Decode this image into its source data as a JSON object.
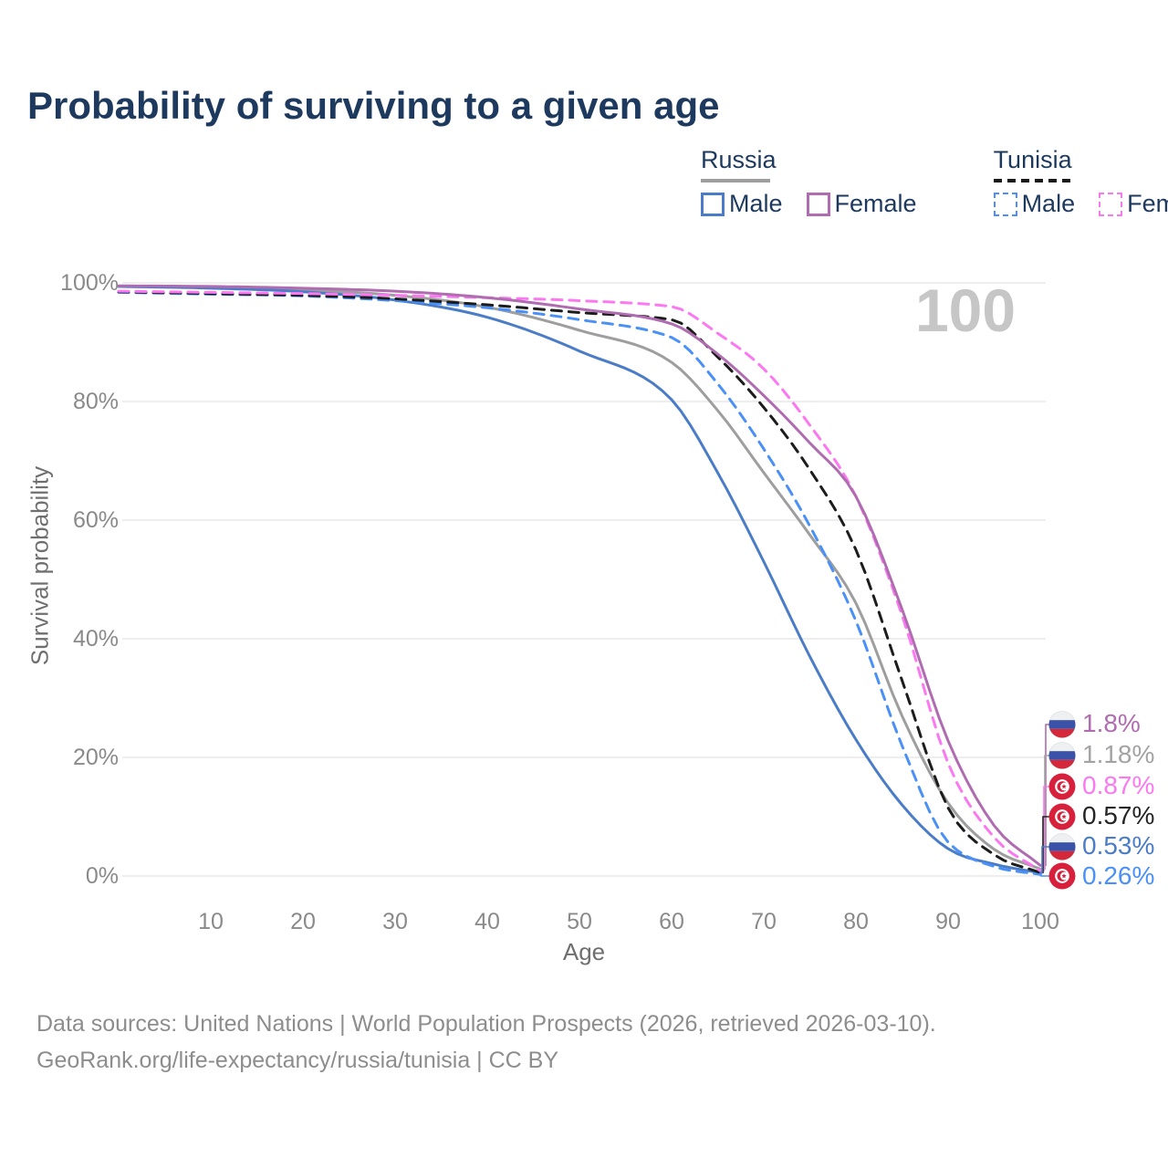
{
  "title": "Probability of surviving to a given age",
  "watermark_age": "100",
  "legend": {
    "groups": [
      {
        "country": "Russia",
        "line_style": "solid",
        "country_line_color": "#9e9e9e",
        "items": [
          {
            "label": "Male",
            "color": "#4a7cc7"
          },
          {
            "label": "Female",
            "color": "#b06cb0"
          }
        ]
      },
      {
        "country": "Tunisia",
        "line_style": "dashed",
        "country_line_color": "#1a1a1a",
        "items": [
          {
            "label": "Male",
            "color": "#4a90f7"
          },
          {
            "label": "Female",
            "color": "#fb78f0"
          }
        ]
      }
    ]
  },
  "chart_data": {
    "type": "line",
    "title": "Probability of surviving to a given age",
    "xlabel": "Age",
    "ylabel": "Survival probability",
    "xlim": [
      0,
      100
    ],
    "ylim": [
      0,
      100
    ],
    "grid": "horizontal",
    "x_tick_labels": [
      "10",
      "20",
      "30",
      "40",
      "50",
      "60",
      "70",
      "80",
      "90",
      "100"
    ],
    "x_tick_values": [
      10,
      20,
      30,
      40,
      50,
      60,
      70,
      80,
      90,
      100
    ],
    "y_tick_labels": [
      "100%",
      "80%",
      "60%",
      "40%",
      "20%",
      "0%"
    ],
    "y_tick_values": [
      100,
      80,
      60,
      40,
      20,
      0
    ],
    "x": [
      0,
      10,
      20,
      30,
      40,
      50,
      60,
      65,
      70,
      75,
      80,
      85,
      90,
      95,
      100
    ],
    "series": [
      {
        "name": "Russia (both sexes)",
        "country": "Russia",
        "color": "#9e9e9e",
        "dashed": false,
        "values": [
          99.4,
          99.2,
          98.8,
          97.9,
          95.9,
          92.0,
          86.6,
          78.5,
          68,
          57.5,
          46,
          27,
          12.3,
          4.5,
          1.18
        ],
        "end_label": "1.18%"
      },
      {
        "name": "Russia Male",
        "country": "Russia",
        "color": "#4a7cc7",
        "dashed": false,
        "values": [
          99.4,
          99.1,
          98.5,
          97.1,
          94.2,
          88.5,
          80.3,
          68,
          53,
          37,
          23,
          12,
          4.6,
          2.0,
          0.53
        ],
        "end_label": "0.53%"
      },
      {
        "name": "Tunisia Male",
        "country": "Tunisia",
        "color": "#4a90f7",
        "dashed": true,
        "values": [
          98.4,
          98.1,
          97.8,
          97.0,
          95.8,
          93.8,
          90.8,
          83,
          72,
          59,
          43,
          22,
          5.7,
          1.6,
          0.26
        ],
        "end_label": "0.26%"
      },
      {
        "name": "Tunisia (both sexes)",
        "country": "Tunisia",
        "color": "#1c1c1c",
        "dashed": true,
        "values": [
          98.5,
          98.2,
          97.9,
          97.3,
          96.3,
          95.0,
          93.8,
          87.5,
          79,
          68.5,
          55,
          33,
          11.5,
          3.6,
          0.57
        ],
        "end_label": "0.57%"
      },
      {
        "name": "Tunisia Female",
        "country": "Tunisia",
        "color": "#fb78f0",
        "dashed": true,
        "values": [
          98.6,
          98.4,
          98.2,
          97.9,
          97.5,
          97.0,
          96.0,
          91.5,
          85.5,
          76,
          64,
          44,
          19,
          6.5,
          0.87
        ],
        "end_label": "0.87%"
      },
      {
        "name": "Russia Female",
        "country": "Russia",
        "color": "#b06cb0",
        "dashed": false,
        "values": [
          99.5,
          99.4,
          99.1,
          98.6,
          97.5,
          95.6,
          93.1,
          88,
          81,
          73,
          64,
          45,
          22.8,
          8.5,
          1.8
        ],
        "end_label": "1.8%"
      }
    ]
  },
  "end_labels": [
    {
      "value": "1.8%",
      "series": "Russia Female",
      "flag": "russia",
      "color": "#b06cb0",
      "end_value": 1.8
    },
    {
      "value": "1.18%",
      "series": "Russia (both sexes)",
      "flag": "russia",
      "color": "#a3a3a3",
      "end_value": 1.18
    },
    {
      "value": "0.87%",
      "series": "Tunisia Female",
      "flag": "tunisia",
      "color": "#fb78f0",
      "end_value": 0.87
    },
    {
      "value": "0.57%",
      "series": "Tunisia (both sexes)",
      "flag": "tunisia",
      "color": "#242424",
      "end_value": 0.57
    },
    {
      "value": "0.53%",
      "series": "Russia Male",
      "flag": "russia",
      "color": "#4a7cc7",
      "end_value": 0.53
    },
    {
      "value": "0.26%",
      "series": "Tunisia Male",
      "flag": "tunisia",
      "color": "#4a90f7",
      "end_value": 0.26
    }
  ],
  "footer": {
    "line1": "Data sources: United Nations | World Population Prospects (2026, retrieved 2026-03-10).",
    "line2": "GeoRank.org/life-expectancy/russia/tunisia | CC BY"
  },
  "colors": {
    "title": "#1d3a5e",
    "grid": "#e8e8e8",
    "axis_text": "#8a8a8a",
    "watermark": "#c6c6c6"
  }
}
